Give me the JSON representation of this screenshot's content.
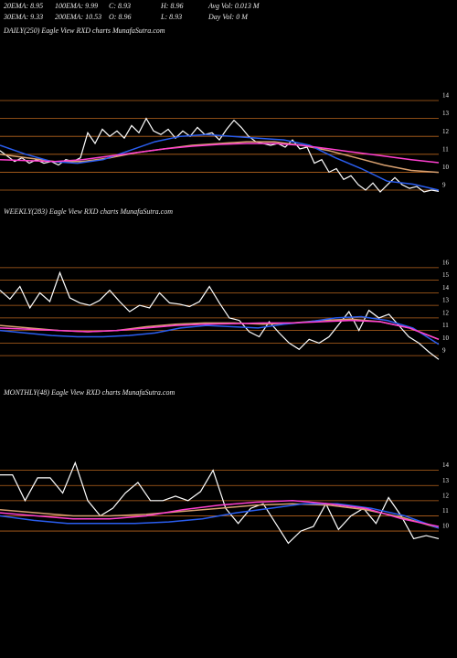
{
  "header": {
    "rows": [
      [
        "20EMA: 8.95",
        "100EMA: 9.99",
        "C: 8.93",
        "H: 8.96",
        "Avg Vol: 0.013 M"
      ],
      [
        "30EMA: 9.33",
        "200EMA: 10.53",
        "O: 8.96",
        "L: 8.93",
        "Day Vol: 0  M"
      ]
    ]
  },
  "chart_data": [
    {
      "type": "line",
      "title": "DAILY(250) Eagle  View  RXD charts MunafaSutra.com",
      "ylim": [
        8.2,
        14.5
      ],
      "yticks": [
        14,
        13,
        12,
        11,
        10,
        9
      ],
      "grid": true,
      "grid_color": "#b8651e",
      "series": [
        {
          "color": "#ffffff",
          "values": [
            11.2,
            10.9,
            10.6,
            10.8,
            10.5,
            10.7,
            10.5,
            10.6,
            10.4,
            10.7,
            10.6,
            10.8,
            12.2,
            11.6,
            12.4,
            12.0,
            12.3,
            11.9,
            12.6,
            12.2,
            13.0,
            12.3,
            12.1,
            12.4,
            11.9,
            12.3,
            12.0,
            12.5,
            12.1,
            12.2,
            11.8,
            12.4,
            12.9,
            12.5,
            12.0,
            11.7,
            11.6,
            11.5,
            11.6,
            11.4,
            11.8,
            11.3,
            11.4,
            10.5,
            10.7,
            10.0,
            10.2,
            9.6,
            9.8,
            9.3,
            9.0,
            9.4,
            8.9,
            9.3,
            9.7,
            9.3,
            9.1,
            9.2,
            8.9,
            9.0,
            8.93
          ]
        },
        {
          "color": "#d8a070",
          "values": [
            11.0,
            10.8,
            10.6,
            10.6,
            10.8,
            11.1,
            11.3,
            11.5,
            11.6,
            11.7,
            11.7,
            11.5,
            11.2,
            10.8,
            10.4,
            10.1,
            9.99
          ]
        },
        {
          "color": "#2a5ef0",
          "values": [
            11.5,
            11.0,
            10.6,
            10.5,
            10.7,
            11.2,
            11.7,
            12.0,
            12.1,
            12.0,
            11.9,
            11.8,
            11.5,
            10.8,
            10.2,
            9.5,
            9.33,
            9.0
          ]
        },
        {
          "color": "#ff3fd0",
          "values": [
            10.7,
            10.65,
            10.6,
            10.7,
            10.9,
            11.1,
            11.3,
            11.45,
            11.55,
            11.6,
            11.6,
            11.5,
            11.3,
            11.1,
            10.9,
            10.7,
            10.53
          ]
        }
      ]
    },
    {
      "type": "line",
      "title": "WEEKLY(283) Eagle  View  RXD charts MunafaSutra.com",
      "ylim": [
        8.5,
        16.5
      ],
      "yticks": [
        16,
        15,
        14,
        13,
        12,
        11,
        10,
        9
      ],
      "grid": true,
      "grid_color": "#b8651e",
      "series": [
        {
          "color": "#ffffff",
          "values": [
            14.2,
            13.5,
            14.5,
            12.8,
            14.0,
            13.3,
            15.6,
            13.6,
            13.2,
            13.0,
            13.4,
            14.2,
            13.3,
            12.5,
            13.0,
            12.8,
            14.0,
            13.2,
            13.1,
            12.9,
            13.3,
            14.5,
            13.2,
            12.0,
            11.8,
            10.9,
            10.5,
            11.7,
            10.8,
            10.0,
            9.5,
            10.3,
            10.0,
            10.5,
            11.5,
            12.5,
            11.0,
            12.6,
            12.0,
            12.3,
            11.4,
            10.5,
            10.0,
            9.3,
            8.7
          ]
        },
        {
          "color": "#d8a070",
          "values": [
            11.4,
            11.2,
            11.0,
            10.9,
            11.0,
            11.3,
            11.5,
            11.6,
            11.6,
            11.5,
            11.6,
            11.8,
            11.9,
            11.7,
            11.2,
            10.3
          ]
        },
        {
          "color": "#2a5ef0",
          "values": [
            11.0,
            10.8,
            10.6,
            10.5,
            10.5,
            10.6,
            10.8,
            11.2,
            11.4,
            11.3,
            11.2,
            11.5,
            11.7,
            12.0,
            12.1,
            11.8,
            11.2,
            9.9
          ]
        },
        {
          "color": "#ff3fd0",
          "values": [
            11.2,
            11.1,
            11.0,
            10.9,
            11.0,
            11.2,
            11.4,
            11.5,
            11.55,
            11.6,
            11.6,
            11.7,
            11.8,
            11.7,
            11.2,
            10.3
          ]
        }
      ]
    },
    {
      "type": "line",
      "title": "MONTHLY(48) Eagle  View  RXD charts MunafaSutra.com",
      "ylim": [
        8.5,
        15
      ],
      "yticks": [
        14,
        13,
        12,
        11,
        10
      ],
      "grid": true,
      "grid_color": "#b8651e",
      "series": [
        {
          "color": "#ffffff",
          "values": [
            13.7,
            13.7,
            12.0,
            13.5,
            13.5,
            12.5,
            14.5,
            12.0,
            11.0,
            11.5,
            12.5,
            13.2,
            12.0,
            12.0,
            12.3,
            12.0,
            12.6,
            14.0,
            11.5,
            10.5,
            11.5,
            11.8,
            10.5,
            9.2,
            10.0,
            10.3,
            11.8,
            10.1,
            11.0,
            11.5,
            10.5,
            12.2,
            11.0,
            9.5,
            9.7,
            9.5
          ]
        },
        {
          "color": "#d8a070",
          "values": [
            11.4,
            11.2,
            11.0,
            11.0,
            11.1,
            11.3,
            11.5,
            11.7,
            11.8,
            11.7,
            11.4,
            10.9,
            10.2
          ]
        },
        {
          "color": "#2a5ef0",
          "values": [
            11.0,
            10.7,
            10.5,
            10.5,
            10.5,
            10.6,
            10.8,
            11.2,
            11.5,
            11.8,
            11.8,
            11.5,
            11.0,
            10.2
          ]
        },
        {
          "color": "#ff3fd0",
          "values": [
            11.2,
            11.0,
            10.8,
            10.8,
            11.0,
            11.4,
            11.7,
            11.9,
            12.0,
            11.8,
            11.5,
            10.8,
            10.3
          ]
        }
      ]
    }
  ]
}
